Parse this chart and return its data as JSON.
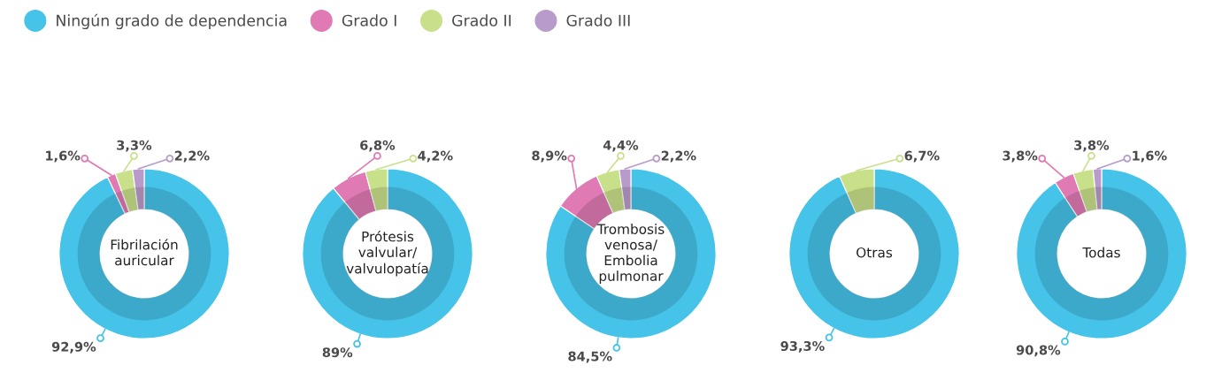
{
  "chart_data": [
    {
      "type": "donut",
      "title": "Fibrilación\nauricular",
      "legend": "top right",
      "categories": [
        "Ningún grado de dependencia",
        "Grado I",
        "Grado II",
        "Grado III"
      ],
      "values": [
        92.9,
        1.6,
        3.3,
        2.2
      ],
      "value_labels": [
        "92,9%",
        "1,6%",
        "3,3%",
        "2,2%"
      ],
      "colors": [
        "#45c3e8",
        "#e07ab5",
        "#c8e08a",
        "#b99bcb"
      ]
    },
    {
      "type": "donut",
      "title": "Prótesis\nvalvular/\nvalvulopatía",
      "values": [
        89,
        6.8,
        4.2
      ],
      "value_labels": [
        "89%",
        "6,8%",
        "4,2%"
      ],
      "colors": [
        "#45c3e8",
        "#e07ab5",
        "#c8e08a"
      ]
    },
    {
      "type": "donut",
      "title": "Trombosis\nvenosa/\nEmbolia\npulmonar",
      "values": [
        84.5,
        8.9,
        4.4,
        2.2
      ],
      "value_labels": [
        "84,5%",
        "8,9%",
        "4,4%",
        "2,2%"
      ],
      "colors": [
        "#45c3e8",
        "#e07ab5",
        "#c8e08a",
        "#b99bcb"
      ]
    },
    {
      "type": "donut",
      "title": "Otras",
      "values": [
        93.3,
        6.7
      ],
      "value_labels": [
        "93,3%",
        "6,7%"
      ],
      "colors": [
        "#45c3e8",
        "#c8e08a"
      ]
    },
    {
      "type": "donut",
      "title": "Todas",
      "values": [
        90.8,
        3.8,
        3.8,
        1.6
      ],
      "value_labels": [
        "90,8%",
        "3,8%",
        "3,8%",
        "1,6%"
      ],
      "colors": [
        "#45c3e8",
        "#e07ab5",
        "#c8e08a",
        "#b99bcb"
      ]
    }
  ]
}
